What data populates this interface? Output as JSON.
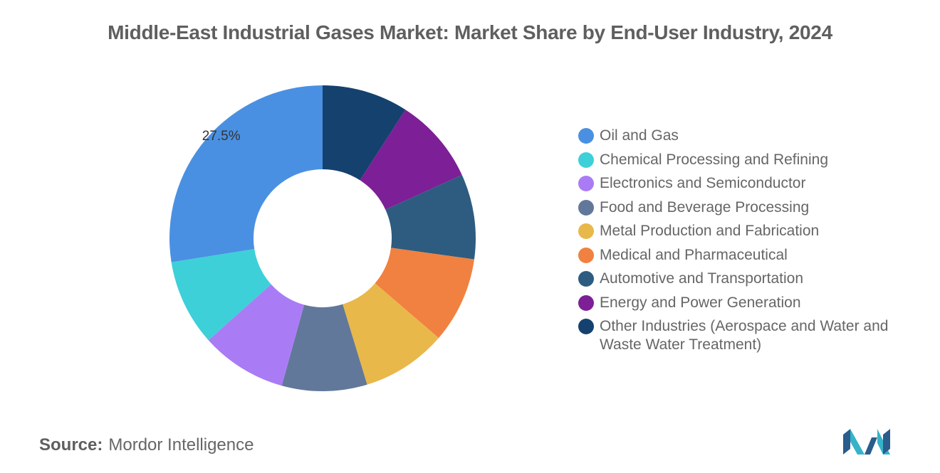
{
  "chart_data": {
    "type": "pie",
    "title": "Middle-East Industrial Gases Market: Market Share by End-User Industry, 2024",
    "donut": true,
    "categories": [
      "Oil and Gas",
      "Chemical Processing and Refining",
      "Electronics and Semiconductor",
      "Food and Beverage Processing",
      "Metal Production and Fabrication",
      "Medical and Pharmaceutical",
      "Automotive and Transportation",
      "Energy and Power Generation",
      "Other Industries (Aerospace and Water and Waste Water Treatment)"
    ],
    "values": [
      27.5,
      9.1,
      9.1,
      9.0,
      9.0,
      9.1,
      9.0,
      9.1,
      9.1
    ],
    "colors": [
      "#4a90e2",
      "#3ed0d8",
      "#a97cf5",
      "#62789a",
      "#e9b84a",
      "#f08140",
      "#2e5c80",
      "#7d1f96",
      "#15416f"
    ],
    "data_labels": [
      {
        "category": "Oil and Gas",
        "text": "27.5%"
      }
    ],
    "legend_position": "right"
  },
  "source": {
    "label": "Source:",
    "text": "Mordor Intelligence"
  },
  "logo": {
    "name": "mordor-intelligence-logo-icon"
  }
}
